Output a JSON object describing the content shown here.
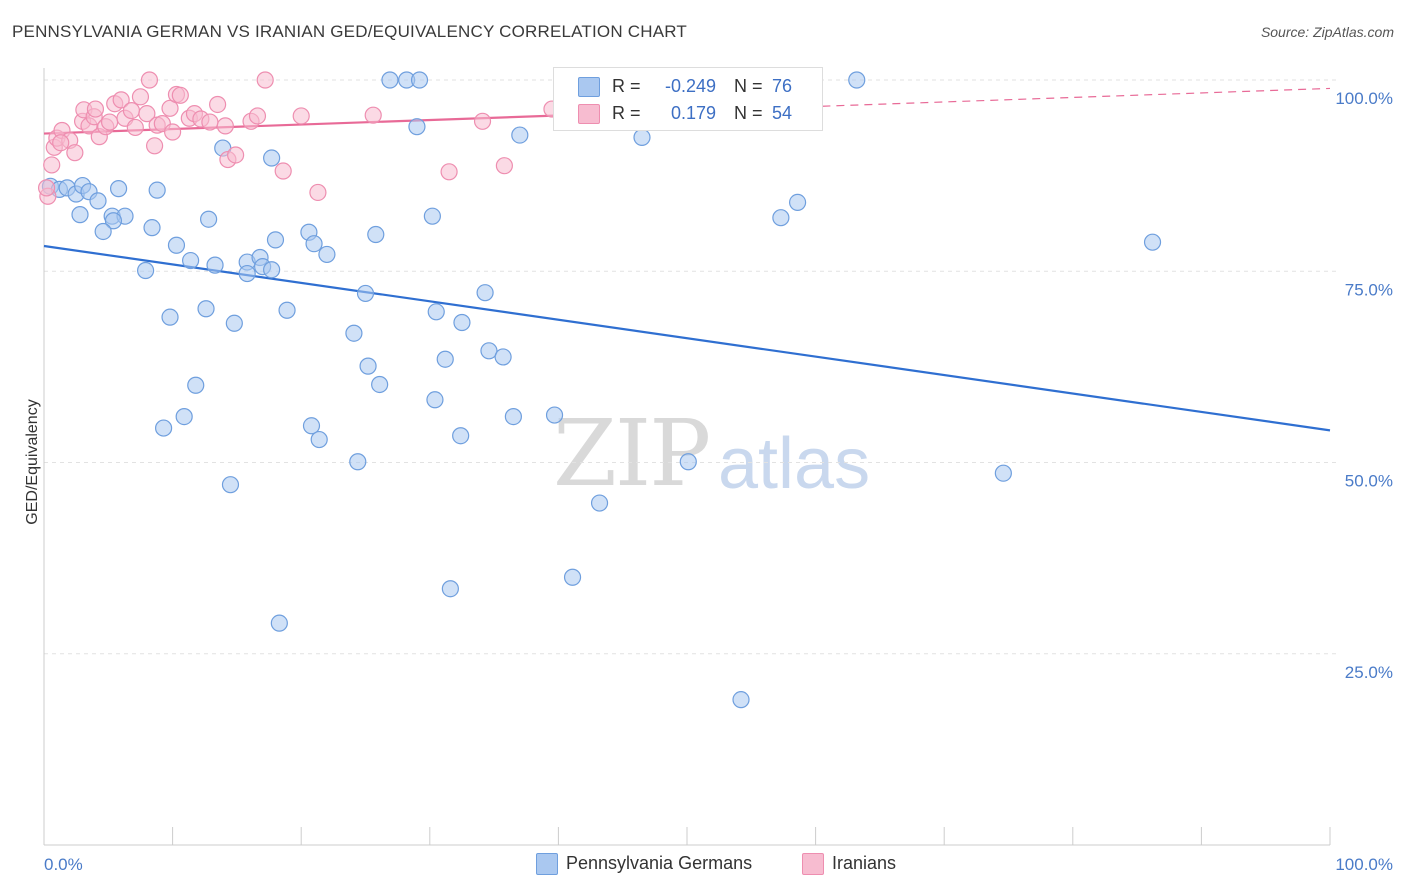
{
  "title": "PENNSYLVANIA GERMAN VS IRANIAN GED/EQUIVALENCY CORRELATION CHART",
  "source": "Source: ZipAtlas.com",
  "watermark": {
    "zip": "ZIP",
    "atlas": "atlas"
  },
  "colors": {
    "blue_fill": "#aac8f0",
    "blue_stroke": "#6f9fde",
    "blue_line": "#2f6fd1",
    "pink_fill": "#f7bcd0",
    "pink_stroke": "#ee8eb0",
    "pink_line": "#e86a97",
    "grid": "#e2e2e2",
    "tick_text": "#4a7bc8"
  },
  "legend": {
    "rows": [
      {
        "r_label": "R =",
        "r_value": "-0.249",
        "n_label": "N =",
        "n_value": "76",
        "color": "#aac8f0",
        "border": "#6f9fde"
      },
      {
        "r_label": "R =",
        "r_value": "0.179",
        "n_label": "N =",
        "n_value": "54",
        "color": "#f7bcd0",
        "border": "#ee8eb0"
      }
    ]
  },
  "bottom_legend": [
    "Pennsylvania Germans",
    "Iranians"
  ],
  "chart_data": {
    "type": "scatter",
    "title": "PENNSYLVANIA GERMAN VS IRANIAN GED/EQUIVALENCY CORRELATION CHART",
    "xlabel": "",
    "ylabel": "GED/Equivalency",
    "xlim": [
      0,
      100
    ],
    "ylim": [
      0,
      100
    ],
    "x_tick_labels": [
      "0.0%",
      "100.0%"
    ],
    "y_tick_labels": [
      "100.0%",
      "75.0%",
      "50.0%",
      "25.0%"
    ],
    "y_ticks": [
      100,
      75,
      50,
      25
    ],
    "grid": true,
    "legend_position": "top-center",
    "series": [
      {
        "name": "Pennsylvania Germans",
        "color": "#aac8f0",
        "R": -0.249,
        "N": 76,
        "trend": {
          "x": [
            0,
            100
          ],
          "y": [
            78.3,
            54.2
          ]
        },
        "points": [
          [
            0.5,
            86.1
          ],
          [
            1.2,
            85.7
          ],
          [
            1.8,
            85.9
          ],
          [
            2.5,
            85.1
          ],
          [
            3.0,
            86.2
          ],
          [
            3.5,
            85.4
          ],
          [
            4.2,
            84.2
          ],
          [
            5.8,
            85.8
          ],
          [
            2.8,
            82.4
          ],
          [
            5.3,
            82.2
          ],
          [
            6.3,
            82.2
          ],
          [
            5.4,
            81.6
          ],
          [
            4.6,
            80.2
          ],
          [
            8.4,
            80.7
          ],
          [
            12.8,
            81.8
          ],
          [
            17.7,
            89.8
          ],
          [
            13.9,
            91.1
          ],
          [
            26.9,
            100.0
          ],
          [
            28.2,
            100.0
          ],
          [
            29.2,
            100.0
          ],
          [
            63.2,
            100.0
          ],
          [
            29.0,
            93.9
          ],
          [
            37.0,
            92.8
          ],
          [
            46.5,
            92.5
          ],
          [
            8.8,
            85.6
          ],
          [
            58.6,
            84.0
          ],
          [
            57.3,
            82.0
          ],
          [
            30.2,
            82.2
          ],
          [
            18.0,
            79.1
          ],
          [
            20.6,
            80.1
          ],
          [
            22.0,
            77.2
          ],
          [
            21.0,
            78.6
          ],
          [
            25.8,
            79.8
          ],
          [
            10.3,
            78.4
          ],
          [
            11.4,
            76.4
          ],
          [
            13.3,
            75.8
          ],
          [
            15.8,
            76.2
          ],
          [
            16.8,
            76.8
          ],
          [
            17.0,
            75.6
          ],
          [
            17.7,
            75.2
          ],
          [
            7.9,
            75.1
          ],
          [
            15.8,
            74.7
          ],
          [
            86.2,
            78.8
          ],
          [
            25.0,
            72.1
          ],
          [
            34.3,
            72.2
          ],
          [
            9.8,
            69.0
          ],
          [
            12.6,
            70.1
          ],
          [
            14.8,
            68.2
          ],
          [
            18.9,
            69.9
          ],
          [
            30.5,
            69.7
          ],
          [
            32.5,
            68.3
          ],
          [
            24.1,
            66.9
          ],
          [
            34.6,
            64.6
          ],
          [
            35.7,
            63.8
          ],
          [
            31.2,
            63.5
          ],
          [
            25.2,
            62.6
          ],
          [
            26.1,
            60.2
          ],
          [
            11.8,
            60.1
          ],
          [
            30.4,
            58.2
          ],
          [
            9.3,
            54.5
          ],
          [
            10.9,
            56.0
          ],
          [
            20.8,
            54.8
          ],
          [
            21.4,
            53.0
          ],
          [
            32.4,
            53.5
          ],
          [
            39.7,
            56.2
          ],
          [
            24.4,
            50.1
          ],
          [
            50.1,
            50.1
          ],
          [
            74.6,
            48.6
          ],
          [
            14.5,
            47.1
          ],
          [
            43.2,
            44.7
          ],
          [
            41.1,
            35.0
          ],
          [
            31.6,
            33.5
          ],
          [
            18.3,
            29.0
          ],
          [
            54.2,
            19.0
          ],
          [
            36.5,
            56.0
          ],
          [
            42.0,
            100.0
          ]
        ]
      },
      {
        "name": "Iranians",
        "color": "#f7bcd0",
        "R": 0.179,
        "N": 54,
        "trend": {
          "x": [
            0,
            100
          ],
          "y": [
            93.0,
            98.9
          ]
        },
        "points": [
          [
            0.3,
            84.8
          ],
          [
            0.6,
            88.9
          ],
          [
            0.8,
            91.2
          ],
          [
            1.0,
            92.4
          ],
          [
            1.4,
            93.4
          ],
          [
            2.0,
            92.1
          ],
          [
            2.4,
            90.5
          ],
          [
            3.0,
            94.6
          ],
          [
            3.1,
            96.1
          ],
          [
            3.5,
            94.0
          ],
          [
            3.9,
            95.2
          ],
          [
            4.0,
            96.2
          ],
          [
            4.3,
            92.6
          ],
          [
            4.8,
            93.9
          ],
          [
            5.1,
            94.5
          ],
          [
            5.5,
            96.9
          ],
          [
            6.0,
            97.4
          ],
          [
            6.3,
            95.0
          ],
          [
            6.8,
            96.0
          ],
          [
            7.1,
            93.8
          ],
          [
            7.5,
            97.8
          ],
          [
            8.0,
            95.6
          ],
          [
            8.2,
            100.0
          ],
          [
            8.8,
            94.1
          ],
          [
            9.2,
            94.3
          ],
          [
            9.8,
            96.3
          ],
          [
            10.0,
            93.2
          ],
          [
            10.3,
            98.1
          ],
          [
            10.6,
            98.0
          ],
          [
            11.3,
            95.0
          ],
          [
            11.7,
            95.6
          ],
          [
            12.2,
            94.9
          ],
          [
            12.9,
            94.5
          ],
          [
            13.5,
            96.8
          ],
          [
            14.1,
            94.0
          ],
          [
            14.3,
            89.6
          ],
          [
            14.9,
            90.2
          ],
          [
            16.1,
            94.6
          ],
          [
            16.6,
            95.3
          ],
          [
            17.2,
            100.0
          ],
          [
            18.6,
            88.1
          ],
          [
            20.0,
            95.3
          ],
          [
            21.3,
            85.3
          ],
          [
            25.6,
            95.4
          ],
          [
            31.5,
            88.0
          ],
          [
            34.1,
            94.6
          ],
          [
            35.8,
            88.8
          ],
          [
            39.5,
            96.2
          ],
          [
            40.6,
            97.1
          ],
          [
            44.0,
            97.3
          ],
          [
            52.0,
            100.0
          ],
          [
            1.3,
            91.8
          ],
          [
            8.6,
            91.4
          ],
          [
            0.2,
            85.9
          ]
        ]
      }
    ]
  }
}
